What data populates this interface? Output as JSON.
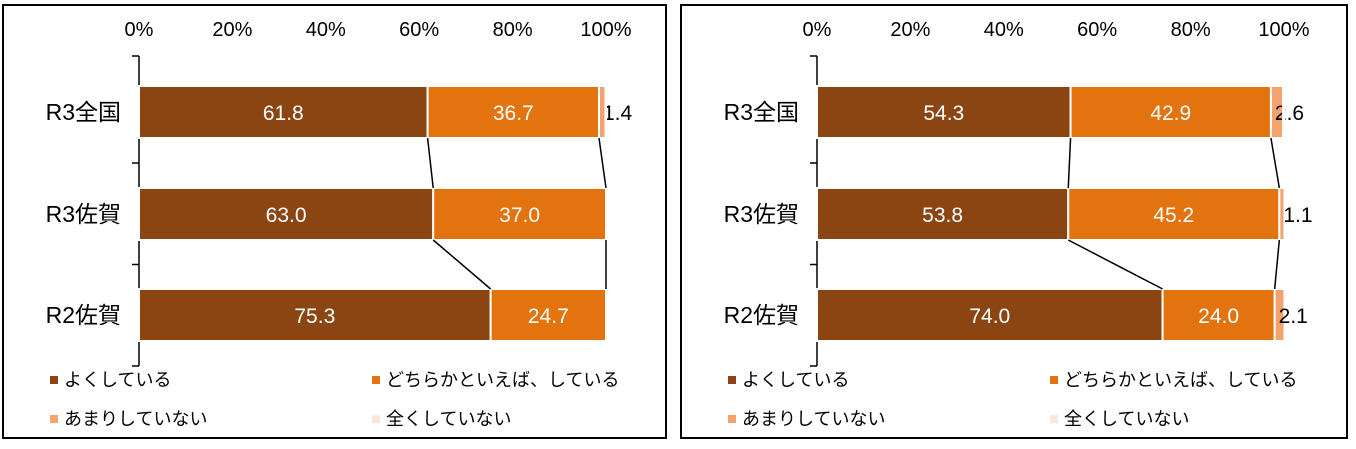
{
  "colors": {
    "よくしている": "#8B4513",
    "どちらかといえば、している": "#E3730E",
    "あまりしていない": "#F2A36E",
    "全くしていない": "#FBE7D8"
  },
  "chart_data": [
    {
      "type": "bar",
      "orientation": "horizontal",
      "stacked": "100%",
      "categories": [
        "R3全国",
        "R3佐賀",
        "R2佐賀"
      ],
      "xlim": [
        0,
        100
      ],
      "x_ticks": [
        "0%",
        "20%",
        "40%",
        "60%",
        "80%",
        "100%"
      ],
      "series": [
        {
          "name": "よくしている",
          "values": [
            61.8,
            63.0,
            75.3
          ],
          "labels": [
            "61.8",
            "63.0",
            "75.3"
          ]
        },
        {
          "name": "どちらかといえば、している",
          "values": [
            36.7,
            37.0,
            24.7
          ],
          "labels": [
            "36.7",
            "37.0",
            "24.7"
          ]
        },
        {
          "name": "あまりしていない",
          "values": [
            1.4,
            0,
            0
          ],
          "labels": [
            "1.4",
            "",
            ""
          ]
        },
        {
          "name": "全くしていない",
          "values": [
            0.1,
            0,
            0
          ],
          "labels": [
            "",
            "",
            ""
          ]
        }
      ],
      "legend": [
        "よくしている",
        "どちらかといえば、している",
        "あまりしていない",
        "全くしていない"
      ],
      "legend_position": "bottom"
    },
    {
      "type": "bar",
      "orientation": "horizontal",
      "stacked": "100%",
      "categories": [
        "R3全国",
        "R3佐賀",
        "R2佐賀"
      ],
      "xlim": [
        0,
        100
      ],
      "x_ticks": [
        "0%",
        "20%",
        "40%",
        "60%",
        "80%",
        "100%"
      ],
      "series": [
        {
          "name": "よくしている",
          "values": [
            54.3,
            53.8,
            74.0
          ],
          "labels": [
            "54.3",
            "53.8",
            "74.0"
          ]
        },
        {
          "name": "どちらかといえば、している",
          "values": [
            42.9,
            45.2,
            24.0
          ],
          "labels": [
            "42.9",
            "45.2",
            "24.0"
          ]
        },
        {
          "name": "あまりしていない",
          "values": [
            2.6,
            1.1,
            2.1
          ],
          "labels": [
            "2.6",
            "1.1",
            "2.1"
          ]
        },
        {
          "name": "全くしていない",
          "values": [
            0.2,
            0,
            0
          ],
          "labels": [
            "",
            "",
            ""
          ]
        }
      ],
      "legend": [
        "よくしている",
        "どちらかといえば、している",
        "あまりしていない",
        "全くしていない"
      ],
      "legend_position": "bottom"
    }
  ]
}
